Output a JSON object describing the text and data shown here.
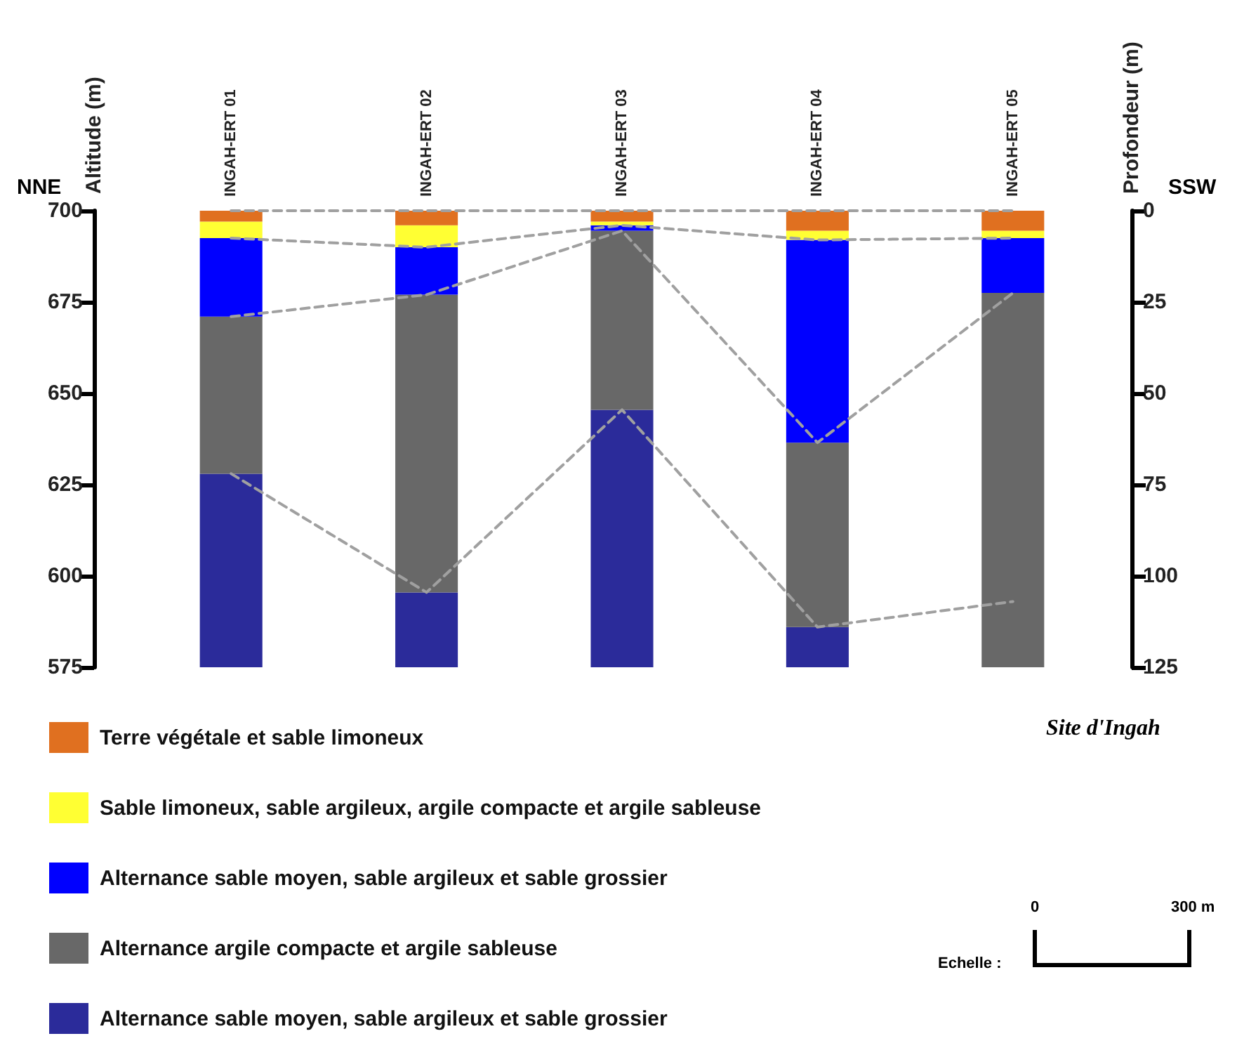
{
  "chart_data": {
    "type": "bar",
    "ylabel": "Altitude (m)",
    "y2label": "Profondeur (m)",
    "categories": [
      "INGAH-ERT 01",
      "INGAH-ERT 02",
      "INGAH-ERT 03",
      "INGAH-ERT 04",
      "INGAH-ERT 05"
    ],
    "series": [
      {
        "name": "Alternance sable moyen, sable argileux et sable grossier",
        "color": "#2b2b9a",
        "base": [
          575,
          575,
          575,
          575,
          null
        ],
        "values": [
          53,
          20.5,
          70.5,
          11,
          null
        ]
      },
      {
        "name": "Alternance argile compacte et argile sableuse",
        "color": "#686868",
        "base": [
          628,
          595.5,
          645.5,
          586,
          575
        ],
        "values": [
          43,
          81.5,
          49,
          50.5,
          102.5
        ]
      },
      {
        "name": "Alternance sable moyen, sable argileux et sable grossier",
        "color": "#0000ff",
        "base": [
          671,
          677,
          694.5,
          636.5,
          677.5
        ],
        "values": [
          21.5,
          13,
          1.5,
          55.5,
          15
        ]
      },
      {
        "name": "Sable limoneux, sable argileux, argile compacte et argile sableuse",
        "color": "#ffff33",
        "base": [
          692.5,
          690,
          696,
          692,
          692.5
        ],
        "values": [
          4.5,
          6,
          1,
          2.5,
          2
        ]
      },
      {
        "name": "Terre végétale et sable limoneux",
        "color": "#e07020",
        "base": [
          697,
          696,
          697,
          694.5,
          694.5
        ],
        "values": [
          3,
          4,
          3,
          5.5,
          5.5
        ]
      },
      {
        "type": "line",
        "color": "#a0a0a0",
        "line_style": "dashed",
        "marker": "none",
        "values": [
          700,
          700,
          700,
          700,
          700
        ]
      },
      {
        "type": "line",
        "color": "#a0a0a0",
        "line_style": "dashed",
        "marker": "none",
        "values": [
          692.5,
          690,
          696,
          692,
          692.5
        ]
      },
      {
        "type": "line",
        "color": "#a0a0a0",
        "line_style": "dashed",
        "marker": "none",
        "values": [
          671,
          677,
          694.5,
          636.5,
          677.5
        ]
      },
      {
        "type": "line",
        "color": "#a0a0a0",
        "line_style": "dashed",
        "marker": "none",
        "values": [
          628,
          595.5,
          645.5,
          586,
          593
        ]
      }
    ],
    "ylim": [
      575,
      700
    ],
    "yticks": [
      575,
      600,
      625,
      650,
      675,
      700
    ],
    "y2lim": [
      125,
      0
    ],
    "y2ticks": [
      0,
      25,
      50,
      75,
      100,
      125
    ],
    "grid": false,
    "legend": "bottom left",
    "annotations": [
      "NNE",
      "SSW",
      "Site d'Ingah",
      "Echelle :",
      "0",
      "300 m"
    ]
  }
}
